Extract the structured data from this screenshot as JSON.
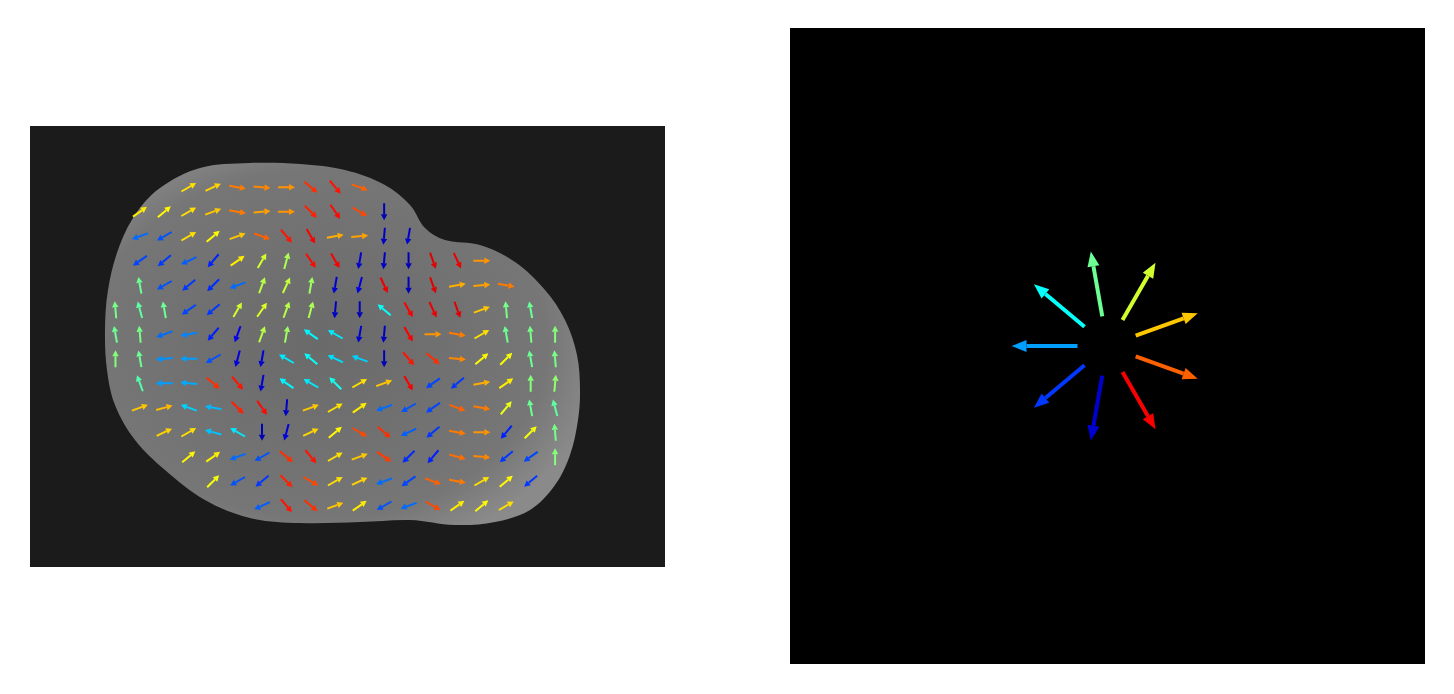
{
  "chart_data": {
    "type": "quiver",
    "tick_labels": false,
    "xlim": [
      -0.5,
      25.5
    ],
    "ylim": [
      -0.5,
      17.5
    ],
    "x": [
      0,
      1,
      2,
      3,
      4,
      5,
      6,
      7,
      8,
      9,
      10,
      11,
      12,
      13,
      14,
      15,
      16,
      17,
      18,
      19,
      20,
      21,
      22,
      23,
      24,
      25
    ],
    "y": [
      0,
      1,
      2,
      3,
      4,
      5,
      6,
      7,
      8,
      9,
      10,
      11,
      12,
      13,
      14,
      15,
      16,
      17
    ],
    "angles": [
      [
        null,
        null,
        null,
        null,
        null,
        null,
        null,
        null,
        null,
        null,
        null,
        null,
        null,
        null,
        null,
        null,
        null,
        null,
        null,
        null,
        null,
        null,
        null,
        null,
        null,
        null
      ],
      [
        null,
        null,
        null,
        null,
        null,
        null,
        null,
        null,
        null,
        null,
        null,
        null,
        null,
        null,
        null,
        null,
        null,
        null,
        null,
        null,
        null,
        null,
        null,
        null,
        null,
        null
      ],
      [
        null,
        null,
        null,
        null,
        null,
        null,
        30,
        25,
        -10,
        -5,
        0,
        -40,
        -50,
        -20,
        null,
        null,
        null,
        null,
        null,
        null,
        null,
        null,
        null,
        null,
        null,
        null
      ],
      [
        null,
        null,
        null,
        null,
        35,
        40,
        30,
        20,
        -10,
        5,
        0,
        -45,
        -55,
        -30,
        270,
        null,
        null,
        null,
        null,
        null,
        null,
        null,
        null,
        null,
        null,
        null
      ],
      [
        null,
        null,
        null,
        null,
        200,
        210,
        30,
        40,
        20,
        -20,
        -50,
        -60,
        10,
        5,
        265,
        260,
        null,
        null,
        null,
        null,
        null,
        null,
        null,
        null,
        null,
        null
      ],
      [
        null,
        null,
        null,
        null,
        215,
        220,
        205,
        230,
        35,
        60,
        75,
        -55,
        -60,
        260,
        265,
        270,
        -70,
        -65,
        0,
        null,
        null,
        null,
        null,
        null,
        null,
        null
      ],
      [
        null,
        null,
        null,
        null,
        100,
        210,
        220,
        225,
        200,
        70,
        65,
        80,
        260,
        255,
        -65,
        270,
        -70,
        10,
        5,
        -10,
        null,
        null,
        null,
        null,
        null,
        null
      ],
      [
        null,
        null,
        null,
        95,
        105,
        100,
        215,
        220,
        60,
        55,
        70,
        75,
        265,
        270,
        140,
        -60,
        -65,
        -70,
        20,
        95,
        100,
        null,
        null,
        null,
        null,
        null
      ],
      [
        null,
        null,
        null,
        100,
        95,
        200,
        190,
        230,
        250,
        70,
        80,
        145,
        150,
        260,
        265,
        -60,
        0,
        -10,
        30,
        100,
        95,
        90,
        null,
        null,
        null,
        null
      ],
      [
        null,
        null,
        null,
        90,
        100,
        185,
        180,
        210,
        255,
        260,
        150,
        140,
        155,
        160,
        270,
        -50,
        -40,
        -5,
        40,
        45,
        100,
        95,
        null,
        null,
        null,
        null
      ],
      [
        null,
        null,
        null,
        null,
        110,
        180,
        175,
        -40,
        -50,
        260,
        145,
        150,
        135,
        30,
        20,
        -60,
        215,
        220,
        10,
        35,
        90,
        85,
        null,
        null,
        null,
        null
      ],
      [
        null,
        null,
        null,
        null,
        20,
        15,
        160,
        170,
        -45,
        -55,
        265,
        20,
        30,
        35,
        200,
        210,
        215,
        -20,
        -10,
        50,
        100,
        105,
        null,
        null,
        null,
        null
      ],
      [
        null,
        null,
        null,
        null,
        null,
        25,
        30,
        165,
        150,
        270,
        255,
        25,
        40,
        -30,
        -40,
        205,
        220,
        -10,
        0,
        230,
        45,
        95,
        null,
        null,
        null,
        null
      ],
      [
        null,
        null,
        null,
        null,
        null,
        null,
        40,
        35,
        200,
        210,
        -40,
        -50,
        30,
        20,
        -35,
        225,
        230,
        -15,
        -5,
        220,
        215,
        90,
        null,
        null,
        null,
        null
      ],
      [
        null,
        null,
        null,
        null,
        null,
        null,
        null,
        45,
        210,
        220,
        -45,
        -30,
        30,
        25,
        200,
        215,
        -20,
        -10,
        30,
        40,
        220,
        null,
        null,
        null,
        null,
        null
      ],
      [
        null,
        null,
        null,
        null,
        null,
        null,
        null,
        null,
        null,
        205,
        -50,
        -40,
        20,
        35,
        210,
        200,
        -30,
        35,
        40,
        30,
        null,
        null,
        null,
        null,
        null,
        null
      ],
      [
        null,
        null,
        null,
        null,
        null,
        null,
        null,
        null,
        null,
        null,
        null,
        null,
        null,
        null,
        null,
        null,
        null,
        null,
        null,
        null,
        null,
        null,
        null,
        null,
        null,
        null
      ],
      [
        null,
        null,
        null,
        null,
        null,
        null,
        null,
        null,
        null,
        null,
        null,
        null,
        null,
        null,
        null,
        null,
        null,
        null,
        null,
        null,
        null,
        null,
        null,
        null,
        null,
        null
      ]
    ],
    "color_range": [
      -80,
      280
    ],
    "key": {
      "angles": [
        -60,
        -20,
        20,
        60,
        100,
        140,
        180,
        220,
        260
      ],
      "xlim": [
        -1,
        1
      ],
      "ylim": [
        -1,
        1
      ]
    }
  }
}
